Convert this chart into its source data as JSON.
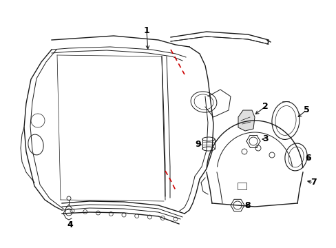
{
  "background_color": "#ffffff",
  "line_color": "#1a1a1a",
  "red_color": "#cc0000",
  "label_color": "#000000",
  "figsize": [
    4.89,
    3.6
  ],
  "dpi": 100
}
